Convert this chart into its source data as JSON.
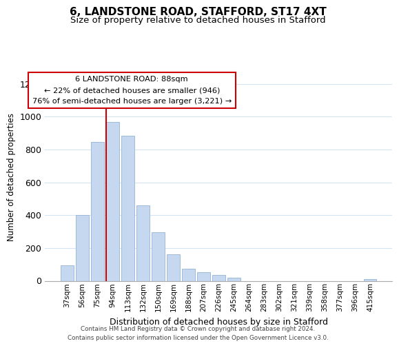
{
  "title": "6, LANDSTONE ROAD, STAFFORD, ST17 4XT",
  "subtitle": "Size of property relative to detached houses in Stafford",
  "xlabel": "Distribution of detached houses by size in Stafford",
  "ylabel": "Number of detached properties",
  "bar_labels": [
    "37sqm",
    "56sqm",
    "75sqm",
    "94sqm",
    "113sqm",
    "132sqm",
    "150sqm",
    "169sqm",
    "188sqm",
    "207sqm",
    "226sqm",
    "245sqm",
    "264sqm",
    "283sqm",
    "302sqm",
    "321sqm",
    "339sqm",
    "358sqm",
    "377sqm",
    "396sqm",
    "415sqm"
  ],
  "bar_values": [
    95,
    400,
    848,
    968,
    885,
    460,
    297,
    160,
    72,
    52,
    35,
    20,
    0,
    0,
    0,
    0,
    0,
    0,
    0,
    0,
    10
  ],
  "bar_color": "#c5d8f0",
  "bar_edge_color": "#94b4d4",
  "vline_color": "#cc0000",
  "vline_x_index": 3,
  "annotation_title": "6 LANDSTONE ROAD: 88sqm",
  "annotation_line1": "← 22% of detached houses are smaller (946)",
  "annotation_line2": "76% of semi-detached houses are larger (3,221) →",
  "annotation_box_color": "#ffffff",
  "annotation_box_edge_color": "#cc0000",
  "ylim": [
    0,
    1260
  ],
  "yticks": [
    0,
    200,
    400,
    600,
    800,
    1000,
    1200
  ],
  "footer_line1": "Contains HM Land Registry data © Crown copyright and database right 2024.",
  "footer_line2": "Contains public sector information licensed under the Open Government Licence v3.0.",
  "background_color": "#ffffff",
  "grid_color": "#d4e4f5",
  "title_fontsize": 11,
  "subtitle_fontsize": 9.5
}
